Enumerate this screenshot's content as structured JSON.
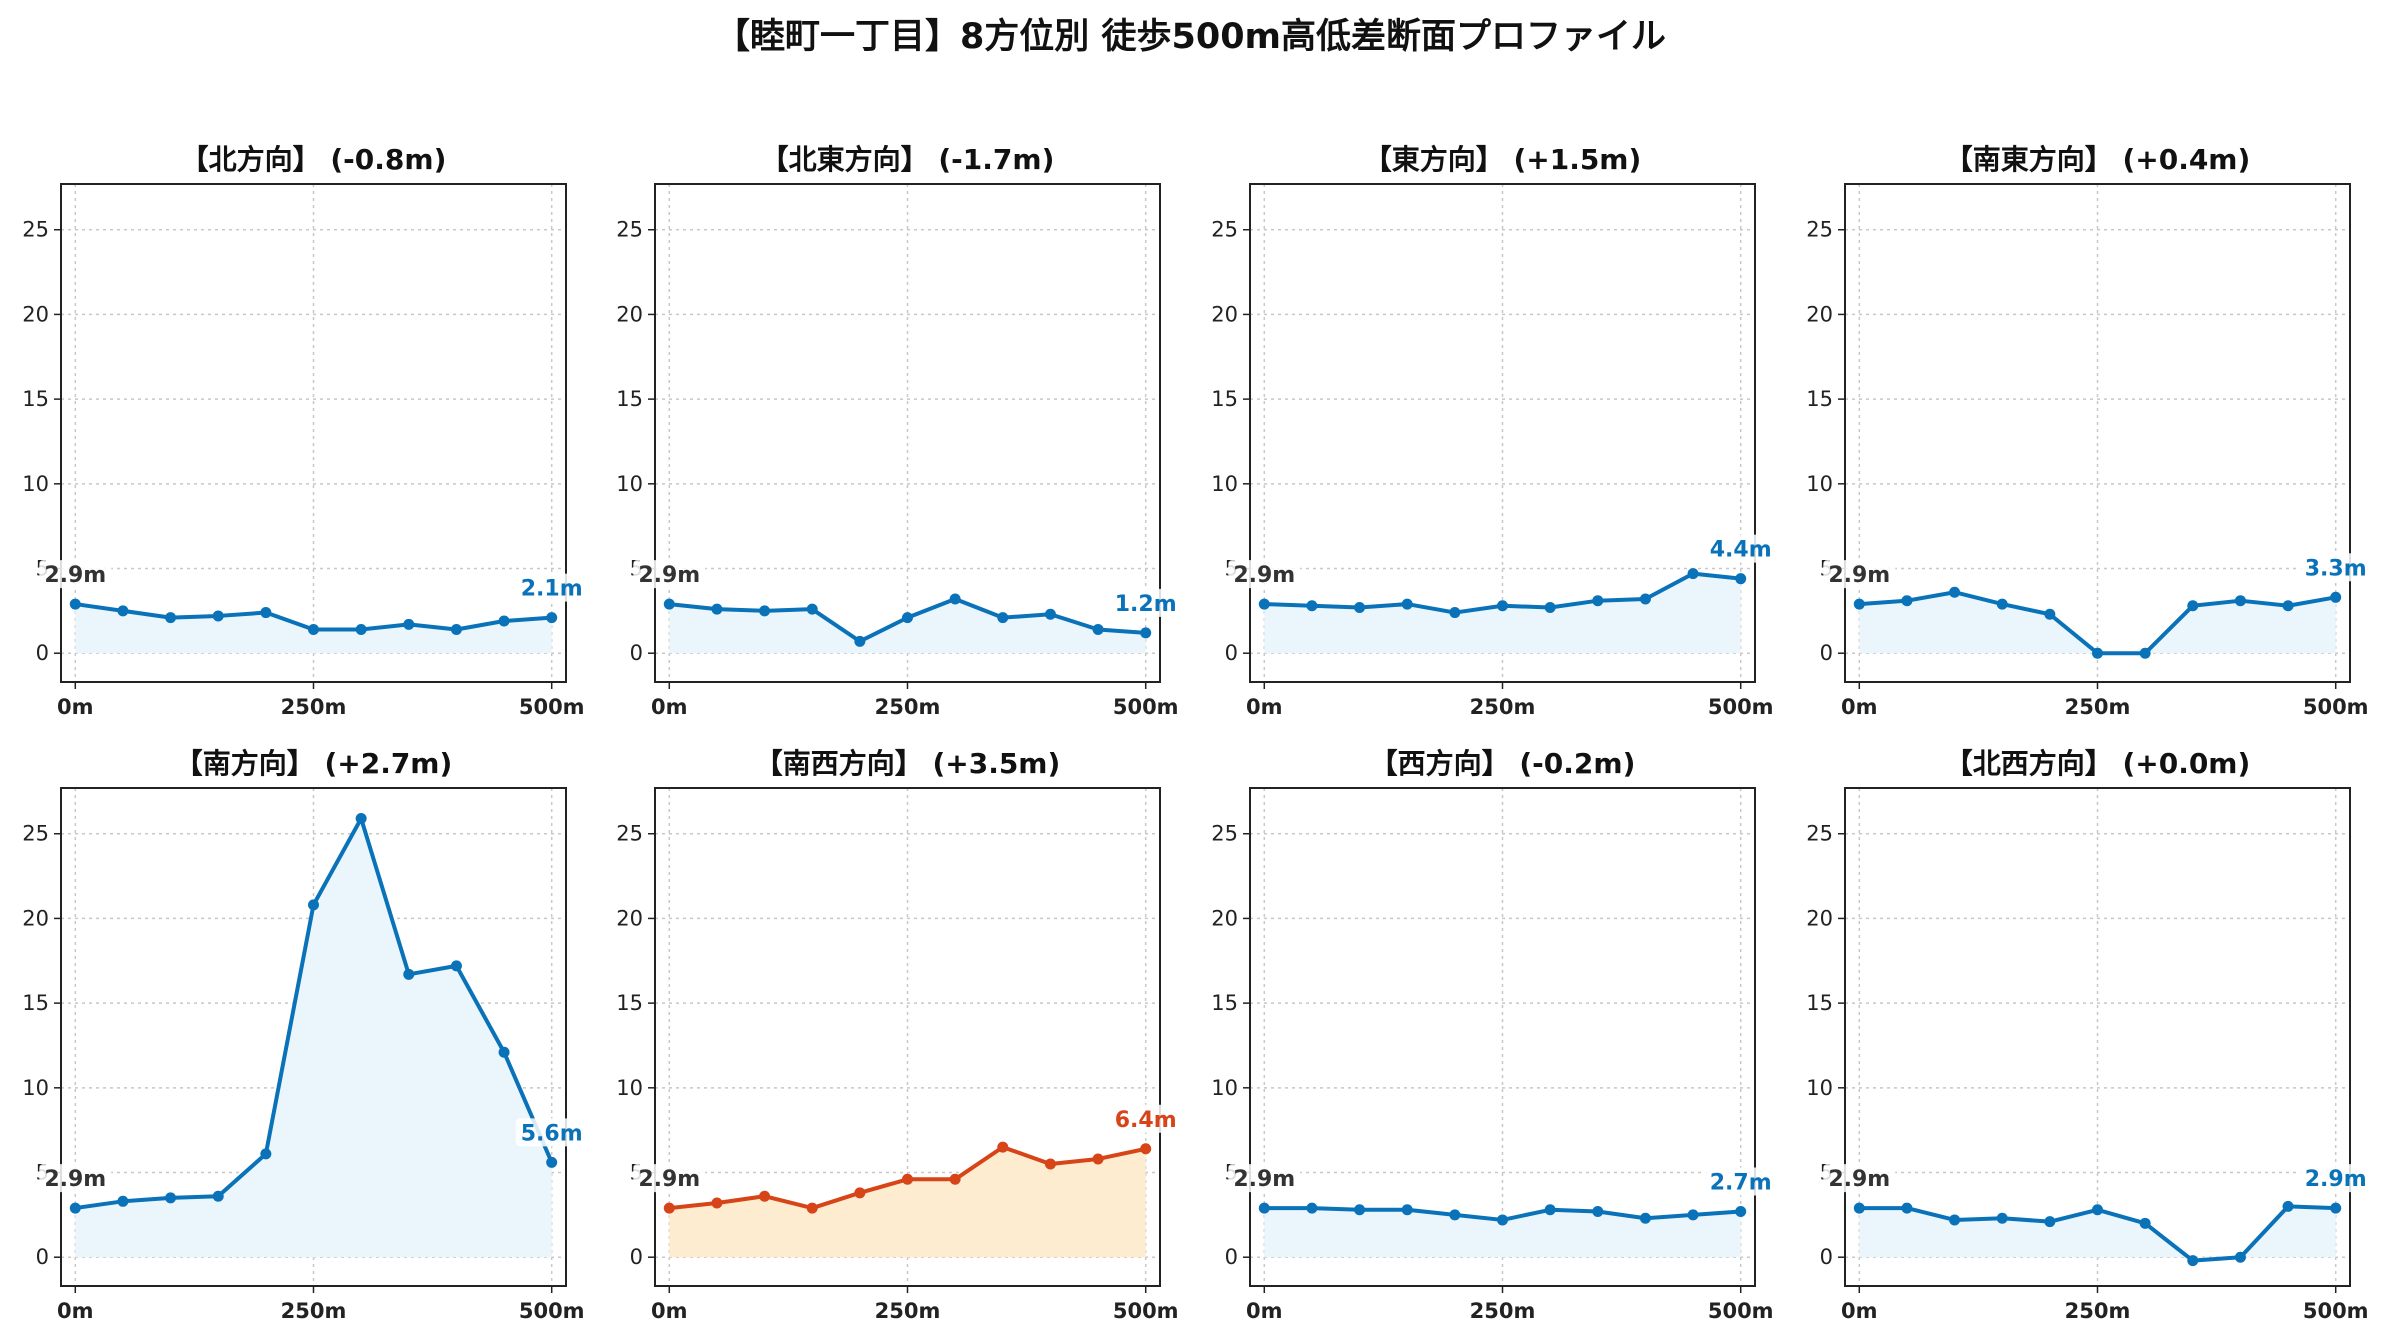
{
  "figure": {
    "title": "【睦町一丁目】8方位別 徒歩500m高低差断面プロファイル"
  },
  "chart_data": [
    {
      "type": "line",
      "title": "【北方向】 (-0.8m)",
      "x": [
        0,
        50,
        100,
        150,
        200,
        250,
        300,
        350,
        400,
        450,
        500
      ],
      "values": [
        2.9,
        2.5,
        2.1,
        2.2,
        2.4,
        1.4,
        1.4,
        1.7,
        1.4,
        1.9,
        2.1
      ],
      "start_label": "2.9m",
      "end_label": "2.1m",
      "line_color": "#0a72b8",
      "fill_color": "#eaf6fb",
      "xticks": [
        "0m",
        "250m",
        "500m"
      ],
      "yticks": [
        "0",
        "5",
        "10",
        "15",
        "20",
        "25"
      ],
      "xlim": [
        -15,
        515
      ],
      "ylim": [
        -1.7,
        27.7
      ],
      "grid": true
    },
    {
      "type": "line",
      "title": "【北東方向】 (-1.7m)",
      "x": [
        0,
        50,
        100,
        150,
        200,
        250,
        300,
        350,
        400,
        450,
        500
      ],
      "values": [
        2.9,
        2.6,
        2.5,
        2.6,
        0.7,
        2.1,
        3.2,
        2.1,
        2.3,
        1.4,
        1.2
      ],
      "start_label": "2.9m",
      "end_label": "1.2m",
      "line_color": "#0a72b8",
      "fill_color": "#eaf6fb",
      "xticks": [
        "0m",
        "250m",
        "500m"
      ],
      "yticks": [
        "0",
        "5",
        "10",
        "15",
        "20",
        "25"
      ],
      "xlim": [
        -15,
        515
      ],
      "ylim": [
        -1.7,
        27.7
      ],
      "grid": true
    },
    {
      "type": "line",
      "title": "【東方向】 (+1.5m)",
      "x": [
        0,
        50,
        100,
        150,
        200,
        250,
        300,
        350,
        400,
        450,
        500
      ],
      "values": [
        2.9,
        2.8,
        2.7,
        2.9,
        2.4,
        2.8,
        2.7,
        3.1,
        3.2,
        4.7,
        4.4
      ],
      "start_label": "2.9m",
      "end_label": "4.4m",
      "line_color": "#0a72b8",
      "fill_color": "#eaf6fb",
      "xticks": [
        "0m",
        "250m",
        "500m"
      ],
      "yticks": [
        "0",
        "5",
        "10",
        "15",
        "20",
        "25"
      ],
      "xlim": [
        -15,
        515
      ],
      "ylim": [
        -1.7,
        27.7
      ],
      "grid": true
    },
    {
      "type": "line",
      "title": "【南東方向】 (+0.4m)",
      "x": [
        0,
        50,
        100,
        150,
        200,
        250,
        300,
        350,
        400,
        450,
        500
      ],
      "values": [
        2.9,
        3.1,
        3.6,
        2.9,
        2.3,
        0.0,
        0.0,
        2.8,
        3.1,
        2.8,
        3.3
      ],
      "start_label": "2.9m",
      "end_label": "3.3m",
      "line_color": "#0a72b8",
      "fill_color": "#eaf6fb",
      "xticks": [
        "0m",
        "250m",
        "500m"
      ],
      "yticks": [
        "0",
        "5",
        "10",
        "15",
        "20",
        "25"
      ],
      "xlim": [
        -15,
        515
      ],
      "ylim": [
        -1.7,
        27.7
      ],
      "grid": true
    },
    {
      "type": "line",
      "title": "【南方向】 (+2.7m)",
      "x": [
        0,
        50,
        100,
        150,
        200,
        250,
        300,
        350,
        400,
        450,
        500
      ],
      "values": [
        2.9,
        3.3,
        3.5,
        3.6,
        6.1,
        20.8,
        25.9,
        16.7,
        17.2,
        12.1,
        5.6
      ],
      "start_label": "2.9m",
      "end_label": "5.6m",
      "line_color": "#0a72b8",
      "fill_color": "#eaf6fb",
      "xticks": [
        "0m",
        "250m",
        "500m"
      ],
      "yticks": [
        "0",
        "5",
        "10",
        "15",
        "20",
        "25"
      ],
      "xlim": [
        -15,
        515
      ],
      "ylim": [
        -1.7,
        27.7
      ],
      "grid": true
    },
    {
      "type": "line",
      "title": "【南西方向】 (+3.5m)",
      "x": [
        0,
        50,
        100,
        150,
        200,
        250,
        300,
        350,
        400,
        450,
        500
      ],
      "values": [
        2.9,
        3.2,
        3.6,
        2.9,
        3.8,
        4.6,
        4.6,
        6.5,
        5.5,
        5.8,
        6.4
      ],
      "start_label": "2.9m",
      "end_label": "6.4m",
      "line_color": "#d64418",
      "fill_color": "#fdeccf",
      "xticks": [
        "0m",
        "250m",
        "500m"
      ],
      "yticks": [
        "0",
        "5",
        "10",
        "15",
        "20",
        "25"
      ],
      "xlim": [
        -15,
        515
      ],
      "ylim": [
        -1.7,
        27.7
      ],
      "grid": true
    },
    {
      "type": "line",
      "title": "【西方向】 (-0.2m)",
      "x": [
        0,
        50,
        100,
        150,
        200,
        250,
        300,
        350,
        400,
        450,
        500
      ],
      "values": [
        2.9,
        2.9,
        2.8,
        2.8,
        2.5,
        2.2,
        2.8,
        2.7,
        2.3,
        2.5,
        2.7
      ],
      "start_label": "2.9m",
      "end_label": "2.7m",
      "line_color": "#0a72b8",
      "fill_color": "#eaf6fb",
      "xticks": [
        "0m",
        "250m",
        "500m"
      ],
      "yticks": [
        "0",
        "5",
        "10",
        "15",
        "20",
        "25"
      ],
      "xlim": [
        -15,
        515
      ],
      "ylim": [
        -1.7,
        27.7
      ],
      "grid": true
    },
    {
      "type": "line",
      "title": "【北西方向】 (+0.0m)",
      "x": [
        0,
        50,
        100,
        150,
        200,
        250,
        300,
        350,
        400,
        450,
        500
      ],
      "values": [
        2.9,
        2.9,
        2.2,
        2.3,
        2.1,
        2.8,
        2.0,
        -0.2,
        0.0,
        3.0,
        2.9
      ],
      "start_label": "2.9m",
      "end_label": "2.9m",
      "line_color": "#0a72b8",
      "fill_color": "#eaf6fb",
      "xticks": [
        "0m",
        "250m",
        "500m"
      ],
      "yticks": [
        "0",
        "5",
        "10",
        "15",
        "20",
        "25"
      ],
      "xlim": [
        -15,
        515
      ],
      "ylim": [
        -1.7,
        27.7
      ],
      "grid": true
    }
  ]
}
